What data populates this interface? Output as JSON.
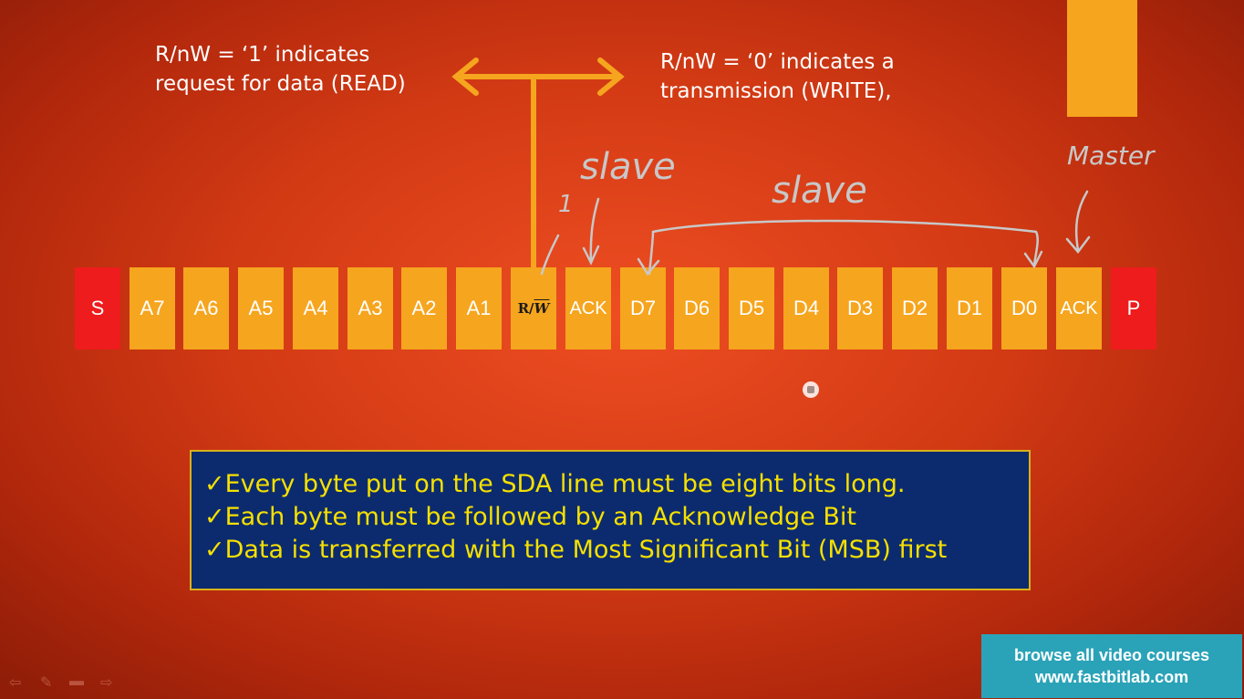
{
  "notes": {
    "read": [
      "R/nW = ‘1’ indicates",
      "request for data (READ)"
    ],
    "write": [
      "R/nW = ‘0’ indicates a",
      "transmission (WRITE),"
    ]
  },
  "handwriting": {
    "slave_top": "slave",
    "slave_mid": "slave",
    "master": "Master",
    "one": "1"
  },
  "frame": {
    "bits": [
      {
        "label": "S",
        "kind": "start"
      },
      {
        "label": "A7",
        "kind": "addr"
      },
      {
        "label": "A6",
        "kind": "addr"
      },
      {
        "label": "A5",
        "kind": "addr"
      },
      {
        "label": "A4",
        "kind": "addr"
      },
      {
        "label": "A3",
        "kind": "addr"
      },
      {
        "label": "A2",
        "kind": "addr"
      },
      {
        "label": "A1",
        "kind": "addr"
      },
      {
        "label": "R/W",
        "kind": "rw"
      },
      {
        "label": "ACK",
        "kind": "ack"
      },
      {
        "label": "D7",
        "kind": "data"
      },
      {
        "label": "D6",
        "kind": "data"
      },
      {
        "label": "D5",
        "kind": "data"
      },
      {
        "label": "D4",
        "kind": "data"
      },
      {
        "label": "D3",
        "kind": "data"
      },
      {
        "label": "D2",
        "kind": "data"
      },
      {
        "label": "D1",
        "kind": "data"
      },
      {
        "label": "D0",
        "kind": "data"
      },
      {
        "label": "ACK",
        "kind": "ack"
      },
      {
        "label": "P",
        "kind": "stop"
      }
    ]
  },
  "info_box": {
    "lines": [
      "✓Every byte put on the SDA line must be eight bits long.",
      "✓Each byte must be followed by an Acknowledge Bit",
      "✓Data is transferred with the Most Significant Bit (MSB) first"
    ]
  },
  "promo": {
    "line1": "browse all video courses",
    "line2": "www.fastbitlab.com"
  },
  "colors": {
    "bit_fill": "#f6a51e",
    "start_stop_fill": "#ee1c1c",
    "info_text": "#f5e000",
    "info_bg": "#0c2b6e",
    "promo_bg": "#2aa3b8"
  },
  "controls": [
    "arrow-left-icon",
    "pen-icon",
    "menu-icon",
    "arrow-right-icon"
  ]
}
